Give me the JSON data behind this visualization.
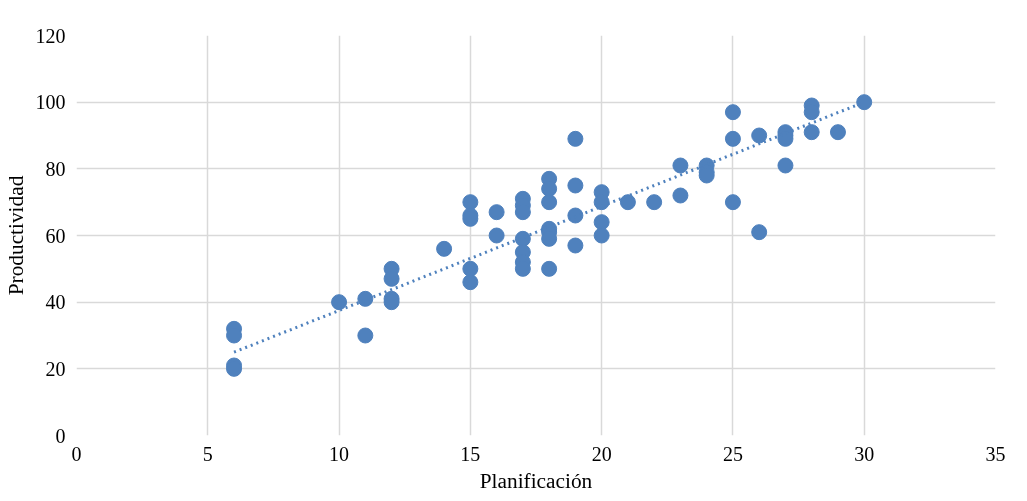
{
  "chart_data": {
    "type": "scatter",
    "xlabel": "Planificación",
    "ylabel": "Productividad",
    "xlim": [
      0,
      35
    ],
    "ylim": [
      0,
      120
    ],
    "xticks": [
      0,
      5,
      10,
      15,
      20,
      25,
      30,
      35
    ],
    "yticks": [
      0,
      20,
      40,
      60,
      80,
      100,
      120
    ],
    "grid": true,
    "series": [
      {
        "color": "#4f81bd",
        "marker": "circle",
        "x": [
          6,
          6,
          6,
          6,
          10,
          11,
          11,
          12,
          12,
          12,
          12,
          14,
          15,
          15,
          15,
          15,
          15,
          16,
          16,
          17,
          17,
          17,
          17,
          17,
          17,
          17,
          18,
          18,
          18,
          18,
          18,
          18,
          18,
          19,
          19,
          19,
          19,
          20,
          20,
          20,
          20,
          21,
          22,
          23,
          23,
          24,
          24,
          24,
          25,
          25,
          25,
          26,
          26,
          27,
          27,
          27,
          27,
          28,
          28,
          28,
          29,
          30
        ],
        "values": [
          32,
          30,
          21,
          20,
          40,
          41,
          30,
          50,
          47,
          41,
          40,
          56,
          70,
          66,
          65,
          50,
          46,
          67,
          60,
          71,
          69,
          67,
          59,
          55,
          52,
          50,
          77,
          74,
          70,
          62,
          61,
          59,
          50,
          89,
          75,
          66,
          57,
          73,
          70,
          64,
          60,
          70,
          70,
          81,
          72,
          81,
          79,
          78,
          97,
          89,
          70,
          90,
          61,
          91,
          90,
          89,
          81,
          99,
          97,
          91,
          91,
          100
        ]
      },
      {
        "type": "line",
        "line_style": "dotted",
        "color": "#4f81bd",
        "x": [
          6,
          30
        ],
        "values": [
          25,
          100
        ]
      }
    ]
  }
}
